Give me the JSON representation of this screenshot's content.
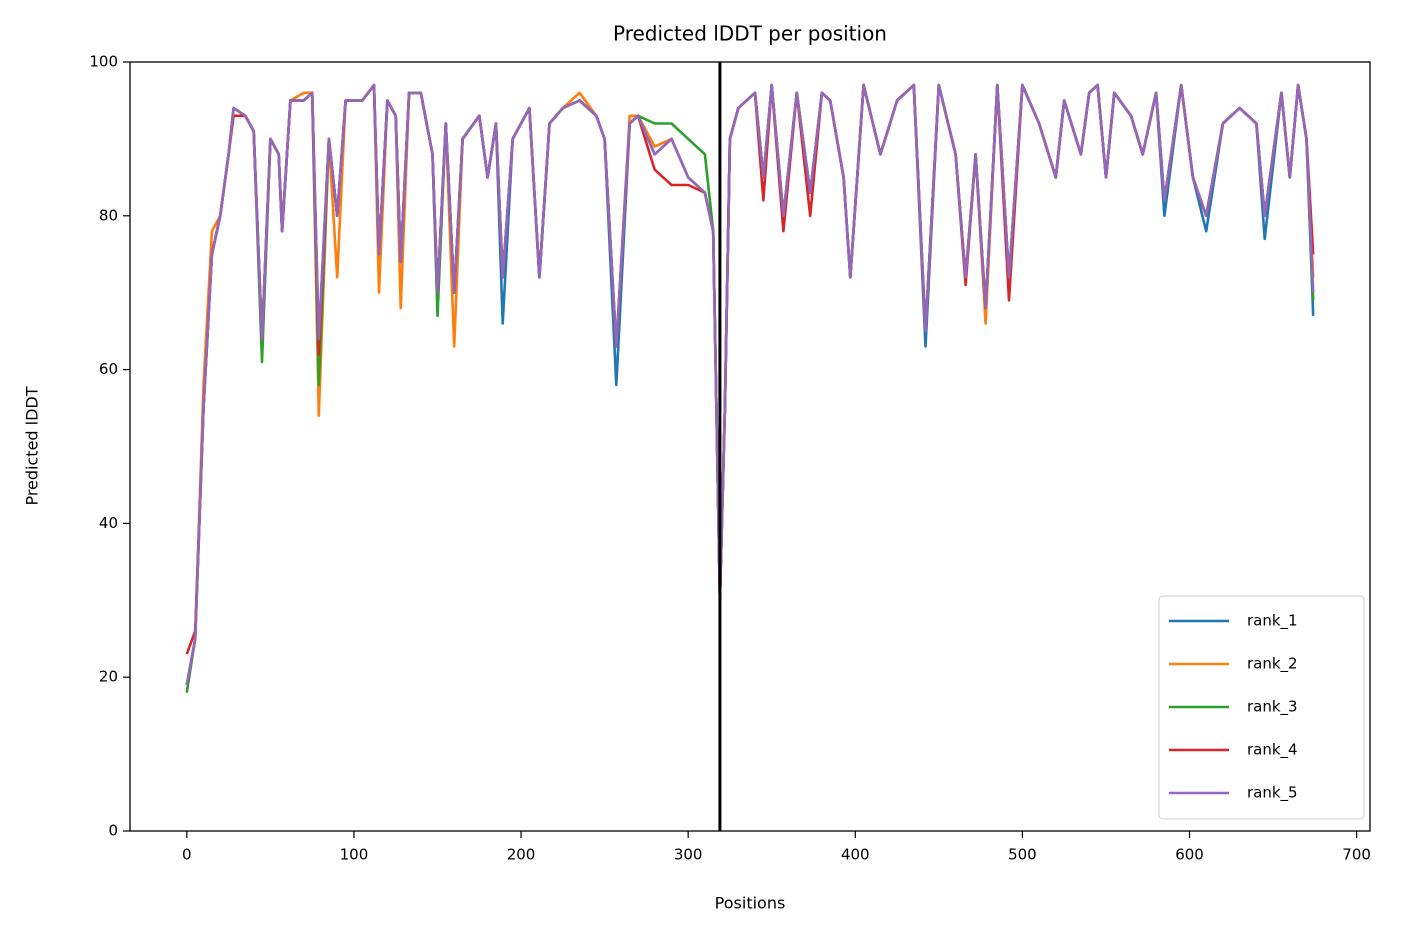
{
  "chart_data": {
    "type": "line",
    "title": "Predicted lDDT per position",
    "x_label": "Positions",
    "y_label": "Predicted lDDT",
    "xlim": [
      -34,
      708
    ],
    "ylim": [
      0,
      100
    ],
    "xticks": [
      0,
      100,
      200,
      300,
      400,
      500,
      600,
      700
    ],
    "yticks": [
      0,
      20,
      40,
      60,
      80,
      100
    ],
    "grid": false,
    "legend": "lower right",
    "vlines": [
      319
    ],
    "vline_color": "#000000",
    "x": [
      0,
      5,
      10,
      15,
      20,
      25,
      28,
      35,
      40,
      45,
      50,
      55,
      57,
      62,
      70,
      75,
      79,
      85,
      90,
      95,
      105,
      112,
      115,
      120,
      125,
      128,
      133,
      140,
      147,
      150,
      155,
      160,
      165,
      175,
      180,
      185,
      189,
      195,
      205,
      211,
      217,
      225,
      235,
      245,
      250,
      257,
      265,
      270,
      280,
      290,
      300,
      310,
      315,
      319,
      322,
      325,
      330,
      340,
      345,
      350,
      357,
      365,
      373,
      380,
      385,
      393,
      397,
      405,
      415,
      425,
      435,
      442,
      450,
      460,
      466,
      472,
      478,
      485,
      492,
      500,
      510,
      520,
      525,
      535,
      540,
      545,
      550,
      555,
      565,
      572,
      580,
      585,
      595,
      602,
      610,
      620,
      630,
      640,
      645,
      655,
      660,
      665,
      670,
      674
    ],
    "series": [
      {
        "name": "rank_1",
        "color": "#1f77b4",
        "values": [
          19,
          25,
          55,
          75,
          80,
          88,
          94,
          93,
          91,
          64,
          90,
          88,
          78,
          95,
          95,
          96,
          64,
          90,
          80,
          95,
          95,
          97,
          75,
          95,
          93,
          74,
          96,
          96,
          88,
          70,
          92,
          70,
          90,
          93,
          85,
          92,
          66,
          90,
          94,
          72,
          92,
          94,
          95,
          93,
          90,
          58,
          92,
          93,
          88,
          90,
          85,
          83,
          78,
          30,
          55,
          90,
          94,
          96,
          85,
          97,
          80,
          96,
          83,
          96,
          95,
          85,
          72,
          97,
          88,
          95,
          97,
          63,
          97,
          88,
          72,
          88,
          68,
          97,
          72,
          97,
          92,
          85,
          95,
          88,
          96,
          97,
          85,
          96,
          93,
          88,
          96,
          80,
          97,
          85,
          78,
          92,
          94,
          92,
          77,
          96,
          85,
          97,
          90,
          67
        ]
      },
      {
        "name": "rank_2",
        "color": "#ff7f0e",
        "values": [
          19,
          25,
          58,
          78,
          80,
          88,
          94,
          93,
          91,
          64,
          90,
          88,
          78,
          95,
          96,
          96,
          54,
          90,
          72,
          95,
          95,
          97,
          70,
          95,
          93,
          68,
          96,
          96,
          88,
          70,
          92,
          63,
          90,
          93,
          85,
          92,
          72,
          90,
          94,
          72,
          92,
          94,
          96,
          93,
          90,
          63,
          93,
          93,
          89,
          90,
          85,
          83,
          78,
          30,
          55,
          90,
          94,
          96,
          85,
          97,
          80,
          96,
          83,
          96,
          95,
          85,
          72,
          97,
          88,
          95,
          97,
          65,
          97,
          88,
          72,
          88,
          66,
          97,
          72,
          97,
          92,
          85,
          95,
          88,
          96,
          97,
          85,
          96,
          93,
          88,
          96,
          82,
          97,
          85,
          80,
          92,
          94,
          92,
          80,
          96,
          85,
          97,
          90,
          72
        ]
      },
      {
        "name": "rank_3",
        "color": "#2ca02c",
        "values": [
          18,
          25,
          55,
          75,
          80,
          88,
          94,
          93,
          91,
          61,
          90,
          88,
          78,
          95,
          95,
          96,
          58,
          90,
          80,
          95,
          95,
          97,
          75,
          95,
          93,
          74,
          96,
          96,
          88,
          67,
          92,
          70,
          90,
          93,
          85,
          92,
          72,
          90,
          94,
          72,
          92,
          94,
          95,
          93,
          90,
          63,
          92,
          93,
          92,
          92,
          90,
          88,
          78,
          30,
          55,
          90,
          94,
          96,
          85,
          97,
          80,
          96,
          83,
          96,
          95,
          85,
          72,
          97,
          88,
          95,
          97,
          65,
          97,
          88,
          72,
          88,
          68,
          97,
          72,
          97,
          92,
          85,
          95,
          88,
          96,
          97,
          85,
          96,
          93,
          88,
          96,
          82,
          97,
          85,
          80,
          92,
          94,
          92,
          80,
          96,
          85,
          97,
          90,
          69
        ]
      },
      {
        "name": "rank_4",
        "color": "#d62728",
        "values": [
          23,
          26,
          55,
          75,
          80,
          88,
          93,
          93,
          91,
          64,
          90,
          88,
          78,
          95,
          95,
          96,
          62,
          90,
          80,
          95,
          95,
          97,
          75,
          95,
          93,
          74,
          96,
          96,
          88,
          70,
          92,
          70,
          90,
          93,
          85,
          92,
          72,
          90,
          94,
          72,
          92,
          94,
          95,
          93,
          90,
          63,
          92,
          93,
          86,
          84,
          84,
          83,
          78,
          30,
          55,
          90,
          94,
          96,
          82,
          97,
          78,
          96,
          80,
          96,
          95,
          85,
          72,
          97,
          88,
          95,
          97,
          65,
          97,
          88,
          71,
          88,
          68,
          97,
          69,
          97,
          92,
          85,
          95,
          88,
          96,
          97,
          85,
          96,
          93,
          88,
          96,
          82,
          97,
          85,
          80,
          92,
          94,
          92,
          80,
          96,
          85,
          97,
          90,
          75
        ]
      },
      {
        "name": "rank_5",
        "color": "#9467bd",
        "values": [
          19,
          25,
          55,
          75,
          80,
          88,
          94,
          93,
          91,
          64,
          90,
          88,
          78,
          95,
          95,
          96,
          64,
          90,
          80,
          95,
          95,
          97,
          75,
          95,
          93,
          74,
          96,
          96,
          88,
          70,
          92,
          70,
          90,
          93,
          85,
          92,
          72,
          90,
          94,
          72,
          92,
          94,
          95,
          93,
          90,
          63,
          92,
          93,
          88,
          90,
          85,
          83,
          78,
          30,
          55,
          90,
          94,
          96,
          85,
          97,
          80,
          96,
          83,
          96,
          95,
          85,
          72,
          97,
          88,
          95,
          97,
          65,
          97,
          88,
          72,
          88,
          68,
          97,
          72,
          97,
          92,
          85,
          95,
          88,
          96,
          97,
          85,
          96,
          93,
          88,
          96,
          82,
          97,
          85,
          80,
          92,
          94,
          92,
          80,
          96,
          85,
          97,
          90,
          70
        ]
      }
    ]
  }
}
